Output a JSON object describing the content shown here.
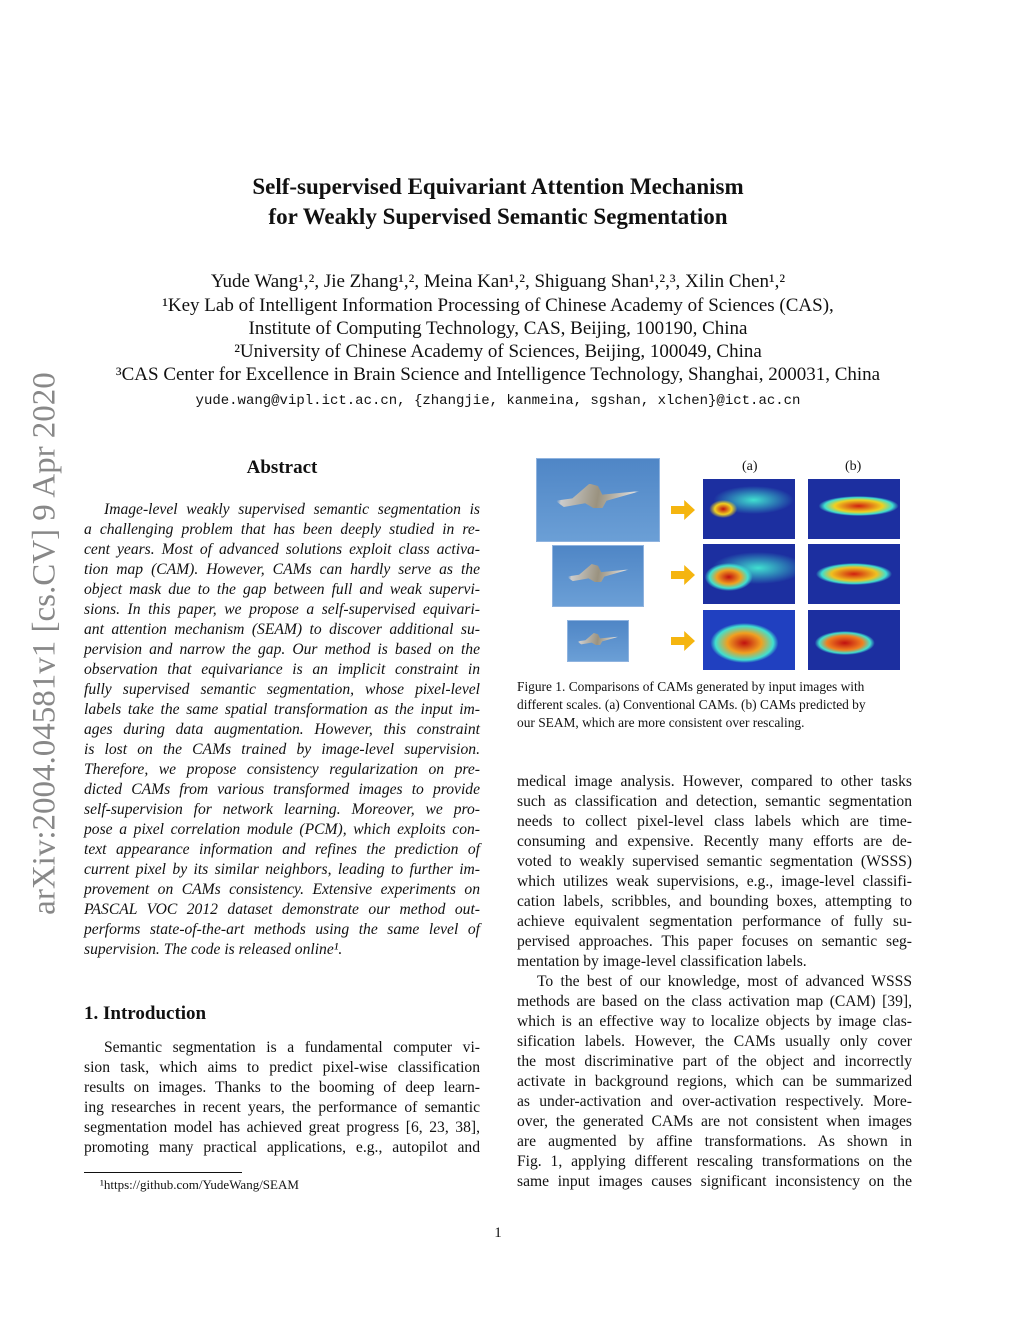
{
  "arxiv_stamp": "arXiv:2004.04581v1  [cs.CV]  9 Apr 2020",
  "title": [
    "Self-supervised Equivariant Attention Mechanism",
    "for Weakly Supervised Semantic Segmentation"
  ],
  "authors": "Yude Wang¹,², Jie Zhang¹,², Meina Kan¹,², Shiguang Shan¹,²,³, Xilin Chen¹,²",
  "affiliations": [
    "¹Key Lab of Intelligent Information Processing of Chinese Academy of Sciences (CAS),",
    "Institute of Computing Technology, CAS, Beijing, 100190, China",
    "²University of Chinese Academy of Sciences, Beijing, 100049, China",
    "³CAS Center for Excellence in Brain Science and Intelligence Technology, Shanghai, 200031, China"
  ],
  "emails": "yude.wang@vipl.ict.ac.cn, {zhangjie, kanmeina, sgshan, xlchen}@ict.ac.cn",
  "abstract": {
    "heading": "Abstract",
    "lines": [
      "Image-level weakly supervised semantic segmentation is",
      "a challenging problem that has been deeply studied in re-",
      "cent years. Most of advanced solutions exploit class activa-",
      "tion map (CAM). However, CAMs can hardly serve as the",
      "object mask due to the gap between full and weak supervi-",
      "sions. In this paper, we propose a self-supervised equivari-",
      "ant attention mechanism (SEAM) to discover additional su-",
      "pervision and narrow the gap. Our method is based on the",
      "observation that equivariance is an implicit constraint in",
      "fully supervised semantic segmentation, whose pixel-level",
      "labels take the same spatial transformation as the input im-",
      "ages during data augmentation. However, this constraint",
      "is lost on the CAMs trained by image-level supervision.",
      "Therefore, we propose consistency regularization on pre-",
      "dicted CAMs from various transformed images to provide",
      "self-supervision for network learning. Moreover, we pro-",
      "pose a pixel correlation module (PCM), which exploits con-",
      "text appearance information and refines the prediction of",
      "current pixel by its similar neighbors, leading to further im-",
      "provement on CAMs consistency. Extensive experiments on",
      "PASCAL VOC 2012 dataset demonstrate our method out-",
      "performs state-of-the-art methods using the same level of",
      "supervision. The code is released online¹."
    ]
  },
  "intro": {
    "heading": "1. Introduction",
    "lines": [
      "Semantic segmentation is a fundamental computer vi-",
      "sion task, which aims to predict pixel-wise classification",
      "results on images. Thanks to the booming of deep learn-",
      "ing researches in recent years, the performance of semantic",
      "segmentation model has achieved great progress [6, 23, 38],",
      "promoting many practical applications, e.g., autopilot and"
    ]
  },
  "footnote": "¹https://github.com/YudeWang/SEAM",
  "figure": {
    "col_labels": [
      "(a)",
      "(b)"
    ],
    "caption": [
      "Figure 1. Comparisons of CAMs generated by input images with",
      "different scales. (a) Conventional CAMs. (b) CAMs predicted by",
      "our SEAM, which are more consistent over rescaling."
    ]
  },
  "right_col": {
    "lines": [
      "medical image analysis. However, compared to other tasks",
      "such as classification and detection, semantic segmentation",
      "needs to collect pixel-level class labels which are time-",
      "consuming and expensive. Recently many efforts are de-",
      "voted to weakly supervised semantic segmentation (WSSS)",
      "which utilizes weak supervisions, e.g., image-level classifi-",
      "cation labels, scribbles, and bounding boxes, attempting to",
      "achieve equivalent segmentation performance of fully su-",
      "pervised approaches. This paper focuses on semantic seg-",
      "mentation by image-level classification labels.",
      "To the best of our knowledge, most of advanced WSSS",
      "methods are based on the class activation map (CAM) [39],",
      "which is an effective way to localize objects by image clas-",
      "sification labels. However, the CAMs usually only cover",
      "the most discriminative part of the object and incorrectly",
      "activate in background regions, which can be summarized",
      "as under-activation and over-activation respectively. More-",
      "over, the generated CAMs are not consistent when images",
      "are augmented by affine transformations. As shown in",
      "Fig. 1, applying different rescaling transformations on the",
      "same input images causes significant inconsistency on the"
    ]
  },
  "page_number": "1"
}
